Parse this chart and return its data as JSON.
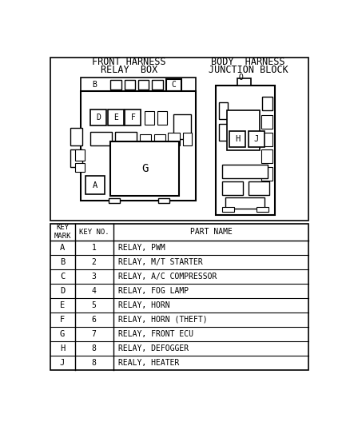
{
  "diagram_label_left_line1": "FRONT HARNESS",
  "diagram_label_left_line2": "RELAY  BOX",
  "diagram_label_right_line1": "BODY  HARNESS",
  "diagram_label_right_line2": "JUNCTION BLOCK",
  "table_headers": [
    "KEY\nMARK",
    "KEY NO.",
    "PART NAME"
  ],
  "table_rows": [
    [
      "A",
      "1",
      "RELAY, PWM"
    ],
    [
      "B",
      "2",
      "RELAY, M/T STARTER"
    ],
    [
      "C",
      "3",
      "RELAY, A/C COMPRESSOR"
    ],
    [
      "D",
      "4",
      "RELAY, FOG LAMP"
    ],
    [
      "E",
      "5",
      "RELAY, HORN"
    ],
    [
      "F",
      "6",
      "RELAY, HORN (THEFT)"
    ],
    [
      "G",
      "7",
      "RELAY, FRONT ECU"
    ],
    [
      "H",
      "8",
      "RELAY, DEFOGGER"
    ],
    [
      "J",
      "8",
      "REALY, HEATER"
    ]
  ],
  "bg_color": "#ffffff",
  "line_color": "#000000",
  "font_color": "#000000"
}
